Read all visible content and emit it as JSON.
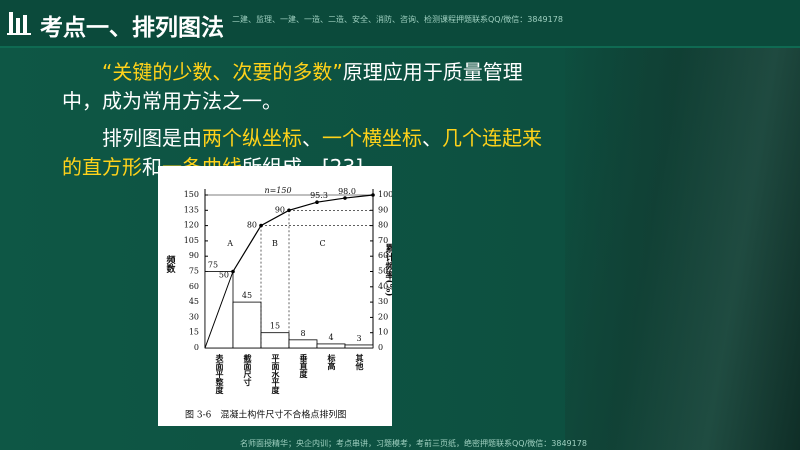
{
  "watermark_top": "二建、监理、一建、一造、二造、安全、消防、咨询、检测课程押题联系QQ/微信：3849178",
  "watermark_bottom": "名师面授精华；央企内训；考点串讲，习题模考，考前三页纸，绝密押题联系QQ/微信：3849178",
  "title": "考点一、排列图法",
  "paragraphs": [
    {
      "segments": [
        {
          "text": "“关键的少数、次要的多数”",
          "highlight": true
        },
        {
          "text": "原理应用于质量管理中，成为常用方法之一。",
          "highlight": false
        }
      ]
    },
    {
      "segments": [
        {
          "text": "排列图是由",
          "highlight": false
        },
        {
          "text": "两个纵坐标",
          "highlight": true
        },
        {
          "text": "、",
          "highlight": false
        },
        {
          "text": "一个横坐标",
          "highlight": true
        },
        {
          "text": "、",
          "highlight": false
        },
        {
          "text": "几个连起来的直方形",
          "highlight": true
        },
        {
          "text": "和",
          "highlight": false
        },
        {
          "text": "一条曲线",
          "highlight": true
        },
        {
          "text": "所组成。[23]",
          "highlight": false
        }
      ]
    }
  ],
  "chart_data": {
    "type": "pareto",
    "caption": "图 3-6　混凝土构件尺寸不合格点排列图",
    "categories": [
      "表面平整度",
      "截面尺寸",
      "平面水平度",
      "垂直度",
      "标高",
      "其他"
    ],
    "series": [
      {
        "type": "bar",
        "color": "#ffffff",
        "values": [
          75,
          45,
          15,
          8,
          4,
          3
        ]
      },
      {
        "type": "line",
        "axis": "y2",
        "color": "#000000",
        "values": [
          50,
          80,
          90,
          95.3,
          98,
          100
        ],
        "value_labels": [
          "50",
          "80",
          "90",
          "95.3",
          "98.0",
          null
        ]
      }
    ],
    "ylim": [
      0,
      150
    ],
    "yticks": [
      0,
      15,
      30,
      45,
      60,
      75,
      90,
      105,
      120,
      135,
      150
    ],
    "y2lim": [
      0,
      100
    ],
    "y2ticks": [
      0,
      10,
      20,
      30,
      40,
      50,
      60,
      70,
      80,
      90,
      100
    ],
    "y_label": "频数",
    "y2_label": "累计频率(%)",
    "total_label": "n=150",
    "zones": [
      "A",
      "B",
      "C"
    ]
  }
}
